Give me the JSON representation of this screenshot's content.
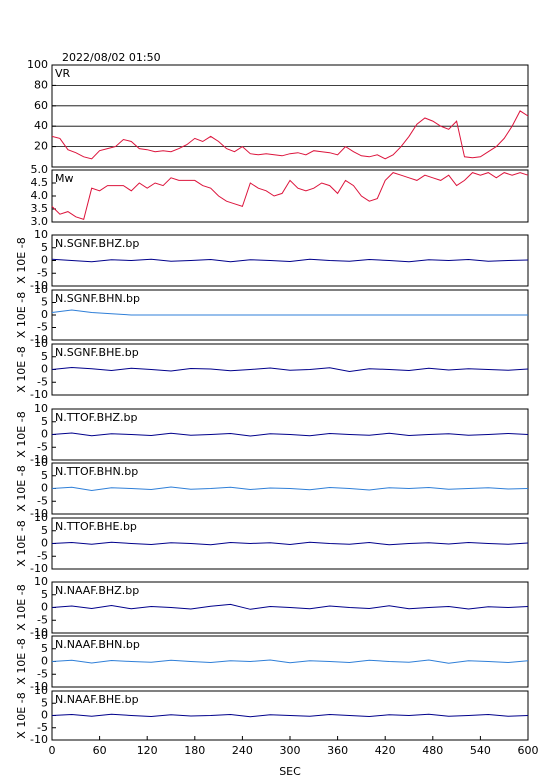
{
  "chart_data": [
    {
      "type": "line",
      "title": "2022/08/02 01:50",
      "label": "VR",
      "color": "#dc143c",
      "grid": true,
      "xlim": [
        0,
        600
      ],
      "ylim": [
        0,
        100
      ],
      "yticks": [
        20,
        40,
        60,
        80,
        100
      ],
      "x": [
        0,
        10,
        20,
        30,
        40,
        50,
        60,
        70,
        80,
        90,
        100,
        110,
        120,
        130,
        140,
        150,
        160,
        170,
        180,
        190,
        200,
        210,
        220,
        230,
        240,
        250,
        260,
        270,
        280,
        290,
        300,
        310,
        320,
        330,
        340,
        350,
        360,
        370,
        380,
        390,
        400,
        410,
        420,
        430,
        440,
        450,
        460,
        470,
        480,
        490,
        500,
        510,
        520,
        530,
        540,
        550,
        560,
        570,
        580,
        590,
        600
      ],
      "values": [
        30,
        28,
        17,
        14,
        10,
        8,
        16,
        18,
        20,
        27,
        25,
        18,
        17,
        15,
        16,
        15,
        18,
        22,
        28,
        25,
        30,
        25,
        18,
        15,
        20,
        13,
        12,
        13,
        12,
        11,
        13,
        14,
        12,
        16,
        15,
        14,
        12,
        20,
        15,
        11,
        10,
        12,
        8,
        12,
        20,
        30,
        42,
        48,
        45,
        40,
        37,
        45,
        10,
        9,
        10,
        15,
        20,
        28,
        40,
        55,
        50
      ]
    },
    {
      "type": "line",
      "label": "Mw",
      "color": "#dc143c",
      "xlim": [
        0,
        600
      ],
      "ylim": [
        3.0,
        5.0
      ],
      "yticks": [
        {
          "value": 3,
          "label": "3.0"
        },
        3.5,
        {
          "value": 4,
          "label": "4.0"
        },
        4.5,
        {
          "value": 5,
          "label": "5.0"
        }
      ],
      "x": [
        0,
        10,
        20,
        30,
        40,
        50,
        60,
        70,
        80,
        90,
        100,
        110,
        120,
        130,
        140,
        150,
        160,
        170,
        180,
        190,
        200,
        210,
        220,
        230,
        240,
        250,
        260,
        270,
        280,
        290,
        300,
        310,
        320,
        330,
        340,
        350,
        360,
        370,
        380,
        390,
        400,
        410,
        420,
        430,
        440,
        450,
        460,
        470,
        480,
        490,
        500,
        510,
        520,
        530,
        540,
        550,
        560,
        570,
        580,
        590,
        600
      ],
      "values": [
        3.6,
        3.3,
        3.4,
        3.2,
        3.1,
        4.3,
        4.2,
        4.4,
        4.4,
        4.4,
        4.2,
        4.5,
        4.3,
        4.5,
        4.4,
        4.7,
        4.6,
        4.6,
        4.6,
        4.4,
        4.3,
        4.0,
        3.8,
        3.7,
        3.6,
        4.5,
        4.3,
        4.2,
        4.0,
        4.1,
        4.6,
        4.3,
        4.2,
        4.3,
        4.5,
        4.4,
        4.1,
        4.6,
        4.4,
        4.0,
        3.8,
        3.9,
        4.6,
        4.9,
        4.8,
        4.7,
        4.6,
        4.8,
        4.7,
        4.6,
        4.8,
        4.4,
        4.6,
        4.9,
        4.8,
        4.9,
        4.7,
        4.9,
        4.8,
        4.9,
        4.8
      ]
    },
    {
      "type": "line",
      "label": "N.SGNF.BHZ.bp",
      "ylabel": "X 10E -8",
      "color": "#00008b",
      "xlim": [
        0,
        600
      ],
      "ylim": [
        -10,
        10
      ],
      "yticks": [
        -10,
        -5,
        0,
        5,
        10
      ],
      "x": [
        0,
        25,
        50,
        75,
        100,
        125,
        150,
        175,
        200,
        225,
        250,
        275,
        300,
        325,
        350,
        375,
        400,
        425,
        450,
        475,
        500,
        525,
        550,
        575,
        600
      ],
      "values": [
        0.5,
        0,
        -0.5,
        0.3,
        0,
        0.5,
        -0.3,
        0,
        0.4,
        -0.5,
        0.3,
        0,
        -0.4,
        0.5,
        0,
        -0.3,
        0.4,
        0,
        -0.5,
        0.3,
        0,
        0.4,
        -0.3,
        0,
        0.2
      ]
    },
    {
      "type": "line",
      "label": "N.SGNF.BHN.bp",
      "ylabel": "X 10E -8",
      "color": "#2f7fd8",
      "xlim": [
        0,
        600
      ],
      "ylim": [
        -10,
        10
      ],
      "yticks": [
        -10,
        -5,
        0,
        5,
        10
      ],
      "x": [
        0,
        25,
        50,
        75,
        100,
        125,
        150,
        175,
        200,
        225,
        250,
        275,
        300,
        325,
        350,
        375,
        400,
        425,
        450,
        475,
        500,
        525,
        550,
        575,
        600
      ],
      "values": [
        1,
        2,
        1,
        0.5,
        0,
        0,
        0,
        0,
        0,
        0,
        0,
        0,
        0,
        0,
        0,
        0,
        0,
        0,
        0,
        0,
        0,
        0,
        0,
        0,
        0
      ]
    },
    {
      "type": "line",
      "label": "N.SGNF.BHE.bp",
      "ylabel": "X 10E -8",
      "color": "#00008b",
      "xlim": [
        0,
        600
      ],
      "ylim": [
        -10,
        10
      ],
      "yticks": [
        -10,
        -5,
        0,
        5,
        10
      ],
      "x": [
        0,
        25,
        50,
        75,
        100,
        125,
        150,
        175,
        200,
        225,
        250,
        275,
        300,
        325,
        350,
        375,
        400,
        425,
        450,
        475,
        500,
        525,
        550,
        575,
        600
      ],
      "values": [
        0,
        0.8,
        0.3,
        -0.4,
        0.5,
        0,
        -0.6,
        0.4,
        0.2,
        -0.5,
        0,
        0.6,
        -0.3,
        0,
        0.7,
        -0.8,
        0.3,
        0,
        -0.4,
        0.5,
        -0.2,
        0.3,
        0,
        -0.3,
        0.2
      ]
    },
    {
      "type": "line",
      "label": "N.TTOF.BHZ.bp",
      "ylabel": "X 10E -8",
      "color": "#00008b",
      "xlim": [
        0,
        600
      ],
      "ylim": [
        -10,
        10
      ],
      "yticks": [
        -10,
        -5,
        0,
        5,
        10
      ],
      "x": [
        0,
        25,
        50,
        75,
        100,
        125,
        150,
        175,
        200,
        225,
        250,
        275,
        300,
        325,
        350,
        375,
        400,
        425,
        450,
        475,
        500,
        525,
        550,
        575,
        600
      ],
      "values": [
        0,
        0.6,
        -0.5,
        0.3,
        0,
        -0.4,
        0.5,
        -0.3,
        0,
        0.4,
        -0.6,
        0.3,
        0,
        -0.5,
        0.4,
        0,
        -0.3,
        0.5,
        -0.4,
        0,
        0.3,
        -0.3,
        0,
        0.4,
        0
      ]
    },
    {
      "type": "line",
      "label": "N.TTOF.BHN.bp",
      "ylabel": "X 10E -8",
      "color": "#2f7fd8",
      "xlim": [
        0,
        600
      ],
      "ylim": [
        -10,
        10
      ],
      "yticks": [
        -10,
        -5,
        0,
        5,
        10
      ],
      "x": [
        0,
        25,
        50,
        75,
        100,
        125,
        150,
        175,
        200,
        225,
        250,
        275,
        300,
        325,
        350,
        375,
        400,
        425,
        450,
        475,
        500,
        525,
        550,
        575,
        600
      ],
      "values": [
        0,
        0.5,
        -0.8,
        0.3,
        0,
        -0.4,
        0.6,
        -0.3,
        0,
        0.5,
        -0.4,
        0.2,
        0,
        -0.5,
        0.4,
        0,
        -0.6,
        0.3,
        0,
        0.4,
        -0.3,
        0,
        0.3,
        -0.2,
        0
      ]
    },
    {
      "type": "line",
      "label": "N.TTOF.BHE.bp",
      "ylabel": "X 10E -8",
      "color": "#00008b",
      "xlim": [
        0,
        600
      ],
      "ylim": [
        -10,
        10
      ],
      "yticks": [
        -10,
        -5,
        0,
        5,
        10
      ],
      "x": [
        0,
        25,
        50,
        75,
        100,
        125,
        150,
        175,
        200,
        225,
        250,
        275,
        300,
        325,
        350,
        375,
        400,
        425,
        450,
        475,
        500,
        525,
        550,
        575,
        600
      ],
      "values": [
        0,
        0.4,
        -0.3,
        0.5,
        0,
        -0.4,
        0.3,
        0,
        -0.5,
        0.4,
        0,
        0.3,
        -0.4,
        0.5,
        0,
        -0.3,
        0.4,
        -0.5,
        0,
        0.3,
        -0.2,
        0.4,
        0,
        -0.3,
        0.2
      ]
    },
    {
      "type": "line",
      "label": "N.NAAF.BHZ.bp",
      "ylabel": "X 10E -8",
      "color": "#00008b",
      "xlim": [
        0,
        600
      ],
      "ylim": [
        -10,
        10
      ],
      "yticks": [
        -10,
        -5,
        0,
        5,
        10
      ],
      "x": [
        0,
        25,
        50,
        75,
        100,
        125,
        150,
        175,
        200,
        225,
        250,
        275,
        300,
        325,
        350,
        375,
        400,
        425,
        450,
        475,
        500,
        525,
        550,
        575,
        600
      ],
      "values": [
        0,
        0.6,
        -0.4,
        0.8,
        -0.5,
        0.4,
        0,
        -0.6,
        0.5,
        1.2,
        -0.7,
        0.4,
        0,
        -0.5,
        0.6,
        0,
        -0.4,
        0.7,
        -0.5,
        0,
        0.4,
        -0.6,
        0.3,
        0,
        0.4
      ]
    },
    {
      "type": "line",
      "label": "N.NAAF.BHN.bp",
      "ylabel": "X 10E -8",
      "color": "#2f7fd8",
      "xlim": [
        0,
        600
      ],
      "ylim": [
        -10,
        10
      ],
      "yticks": [
        -10,
        -5,
        0,
        5,
        10
      ],
      "x": [
        0,
        25,
        50,
        75,
        100,
        125,
        150,
        175,
        200,
        225,
        250,
        275,
        300,
        325,
        350,
        375,
        400,
        425,
        450,
        475,
        500,
        525,
        550,
        575,
        600
      ],
      "values": [
        0,
        0.5,
        -0.6,
        0.4,
        0,
        -0.3,
        0.5,
        0,
        -0.4,
        0.3,
        0,
        0.6,
        -0.5,
        0.3,
        0,
        -0.4,
        0.5,
        0,
        -0.3,
        0.6,
        -0.7,
        0.3,
        0,
        -0.4,
        0.3
      ]
    },
    {
      "type": "line",
      "label": "N.NAAF.BHE.bp",
      "ylabel": "X 10E -8",
      "color": "#00008b",
      "xlim": [
        0,
        600
      ],
      "ylim": [
        -10,
        10
      ],
      "yticks": [
        -10,
        -5,
        0,
        5,
        10
      ],
      "xlabel": "SEC",
      "xticks": [
        0,
        60,
        120,
        180,
        240,
        300,
        360,
        420,
        480,
        540,
        600
      ],
      "x": [
        0,
        25,
        50,
        75,
        100,
        125,
        150,
        175,
        200,
        225,
        250,
        275,
        300,
        325,
        350,
        375,
        400,
        425,
        450,
        475,
        500,
        525,
        550,
        575,
        600
      ],
      "values": [
        0,
        0.4,
        -0.3,
        0.5,
        0,
        -0.4,
        0.3,
        -0.2,
        0,
        0.4,
        -0.5,
        0.3,
        0,
        -0.3,
        0.4,
        0,
        -0.4,
        0.3,
        0,
        0.5,
        -0.3,
        0,
        0.4,
        -0.3,
        0
      ]
    }
  ]
}
